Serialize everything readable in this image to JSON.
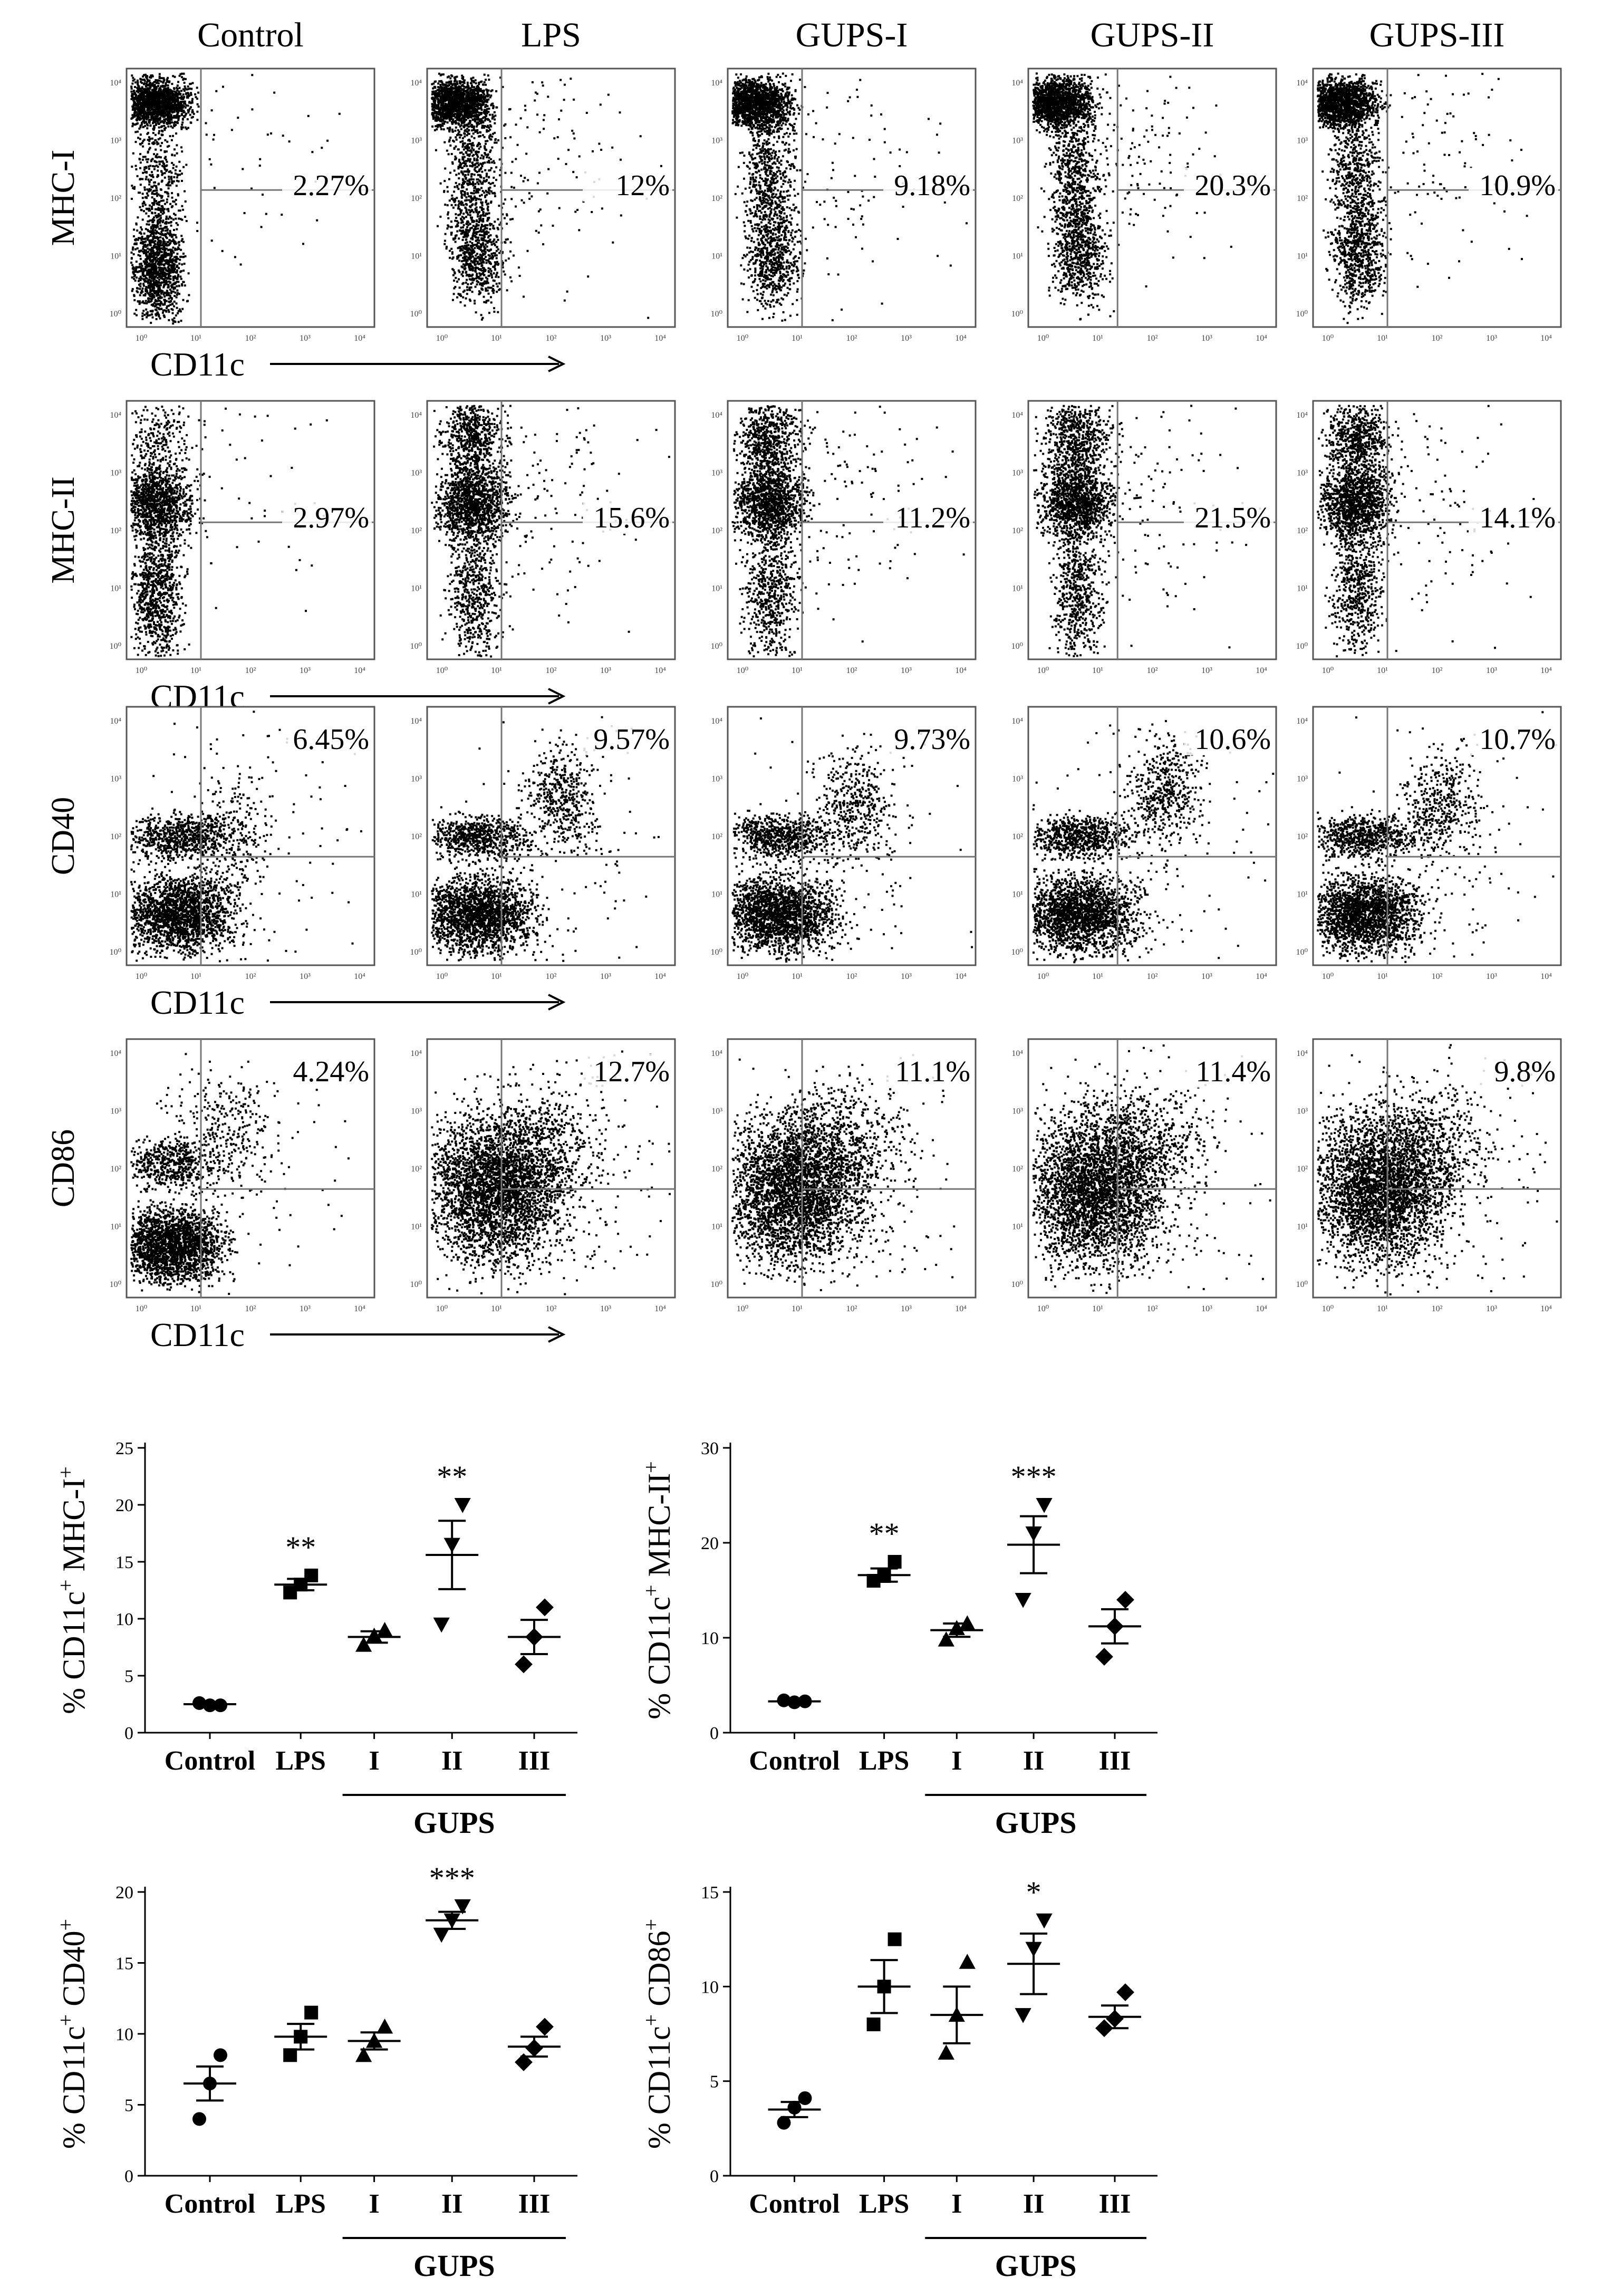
{
  "flow": {
    "columns": [
      "Control",
      "LPS",
      "GUPS-I",
      "GUPS-II",
      "GUPS-III"
    ],
    "rows": [
      {
        "marker": "MHC-I",
        "x_label": "CD11c",
        "percents": [
          "2.27%",
          "12%",
          "9.18%",
          "20.3%",
          "10.9%"
        ],
        "pattern": "mhc1"
      },
      {
        "marker": "MHC-II",
        "x_label": "CD11c",
        "percents": [
          "2.97%",
          "15.6%",
          "11.2%",
          "21.5%",
          "14.1%"
        ],
        "pattern": "mhc2"
      },
      {
        "marker": "CD40",
        "x_label": "CD11c",
        "percents": [
          "6.45%",
          "9.57%",
          "9.73%",
          "10.6%",
          "10.7%"
        ],
        "pattern": "cd40"
      },
      {
        "marker": "CD86",
        "x_label": "CD11c",
        "percents": [
          "4.24%",
          "12.7%",
          "11.1%",
          "11.4%",
          "9.8%"
        ],
        "pattern": "cd86"
      }
    ],
    "decades": [
      "10⁰",
      "10¹",
      "10²",
      "10³",
      "10⁴"
    ]
  },
  "chart_data": [
    {
      "type": "scatter",
      "title": "",
      "ylabel": "% CD11c⁺ MHC-I⁺",
      "ylabel_parts": [
        "% CD11c",
        "+",
        " MHC-I",
        "+"
      ],
      "ylim": [
        0,
        25
      ],
      "yticks": [
        0,
        5,
        10,
        15,
        20,
        25
      ],
      "categories": [
        "Control",
        "LPS",
        "I",
        "II",
        "III"
      ],
      "group_label": "GUPS",
      "series": [
        {
          "name": "Control",
          "marker": "circle",
          "values": [
            2.6,
            2.4,
            2.4
          ],
          "mean": 2.5,
          "sem": 0.2,
          "sig": ""
        },
        {
          "name": "LPS",
          "marker": "square",
          "values": [
            12.3,
            13.0,
            13.8
          ],
          "mean": 13.0,
          "sem": 0.5,
          "sig": "**"
        },
        {
          "name": "I",
          "marker": "triangle-up",
          "values": [
            7.7,
            8.5,
            9.0
          ],
          "mean": 8.4,
          "sem": 0.5,
          "sig": ""
        },
        {
          "name": "II",
          "marker": "triangle-down",
          "values": [
            9.5,
            16.5,
            20.0
          ],
          "mean": 15.6,
          "sem": 3.0,
          "sig": "**"
        },
        {
          "name": "III",
          "marker": "diamond",
          "values": [
            6.0,
            8.4,
            11.0
          ],
          "mean": 8.4,
          "sem": 1.5,
          "sig": ""
        }
      ]
    },
    {
      "type": "scatter",
      "title": "",
      "ylabel": "% CD11c⁺ MHC-II⁺",
      "ylabel_parts": [
        "% CD11c",
        "+",
        " MHC-II",
        "+"
      ],
      "ylim": [
        0,
        30
      ],
      "yticks": [
        0,
        10,
        20,
        30
      ],
      "categories": [
        "Control",
        "LPS",
        "I",
        "II",
        "III"
      ],
      "group_label": "GUPS",
      "series": [
        {
          "name": "Control",
          "marker": "circle",
          "values": [
            3.4,
            3.2,
            3.3
          ],
          "mean": 3.3,
          "sem": 0.2,
          "sig": ""
        },
        {
          "name": "LPS",
          "marker": "square",
          "values": [
            16.0,
            16.5,
            18.0
          ],
          "mean": 16.6,
          "sem": 0.7,
          "sig": "**"
        },
        {
          "name": "I",
          "marker": "triangle-up",
          "values": [
            9.8,
            11.0,
            11.5
          ],
          "mean": 10.8,
          "sem": 0.7,
          "sig": ""
        },
        {
          "name": "II",
          "marker": "triangle-down",
          "values": [
            14.0,
            21.0,
            24.0
          ],
          "mean": 19.8,
          "sem": 3.0,
          "sig": "***"
        },
        {
          "name": "III",
          "marker": "diamond",
          "values": [
            8.0,
            11.2,
            14.0
          ],
          "mean": 11.2,
          "sem": 1.8,
          "sig": ""
        }
      ]
    },
    {
      "type": "scatter",
      "title": "",
      "ylabel": "% CD11c⁺ CD40⁺",
      "ylabel_parts": [
        "% CD11c",
        "+",
        " CD40",
        "+"
      ],
      "ylim": [
        0,
        20
      ],
      "yticks": [
        0,
        5,
        10,
        15,
        20
      ],
      "categories": [
        "Control",
        "LPS",
        "I",
        "II",
        "III"
      ],
      "group_label": "GUPS",
      "series": [
        {
          "name": "Control",
          "marker": "circle",
          "values": [
            4.0,
            6.5,
            8.5
          ],
          "mean": 6.5,
          "sem": 1.2,
          "sig": ""
        },
        {
          "name": "LPS",
          "marker": "square",
          "values": [
            8.5,
            9.8,
            11.5
          ],
          "mean": 9.8,
          "sem": 0.9,
          "sig": ""
        },
        {
          "name": "I",
          "marker": "triangle-up",
          "values": [
            8.5,
            9.5,
            10.5
          ],
          "mean": 9.5,
          "sem": 0.6,
          "sig": ""
        },
        {
          "name": "II",
          "marker": "triangle-down",
          "values": [
            17.0,
            18.0,
            19.0
          ],
          "mean": 18.0,
          "sem": 0.6,
          "sig": "***"
        },
        {
          "name": "III",
          "marker": "diamond",
          "values": [
            8.0,
            9.0,
            10.5
          ],
          "mean": 9.1,
          "sem": 0.7,
          "sig": ""
        }
      ]
    },
    {
      "type": "scatter",
      "title": "",
      "ylabel": "% CD11c⁺ CD86⁺",
      "ylabel_parts": [
        "% CD11c",
        "+",
        " CD86",
        "+"
      ],
      "ylim": [
        0,
        15
      ],
      "yticks": [
        0,
        5,
        10,
        15
      ],
      "categories": [
        "Control",
        "LPS",
        "I",
        "II",
        "III"
      ],
      "group_label": "GUPS",
      "series": [
        {
          "name": "Control",
          "marker": "circle",
          "values": [
            2.8,
            3.6,
            4.1
          ],
          "mean": 3.5,
          "sem": 0.4,
          "sig": ""
        },
        {
          "name": "LPS",
          "marker": "square",
          "values": [
            8.0,
            10.0,
            12.5
          ],
          "mean": 10.0,
          "sem": 1.4,
          "sig": ""
        },
        {
          "name": "I",
          "marker": "triangle-up",
          "values": [
            6.5,
            8.5,
            11.3
          ],
          "mean": 8.5,
          "sem": 1.5,
          "sig": ""
        },
        {
          "name": "II",
          "marker": "triangle-down",
          "values": [
            8.5,
            12.0,
            13.5
          ],
          "mean": 11.2,
          "sem": 1.6,
          "sig": "*"
        },
        {
          "name": "III",
          "marker": "diamond",
          "values": [
            7.8,
            8.3,
            9.7
          ],
          "mean": 8.4,
          "sem": 0.6,
          "sig": ""
        }
      ]
    }
  ]
}
